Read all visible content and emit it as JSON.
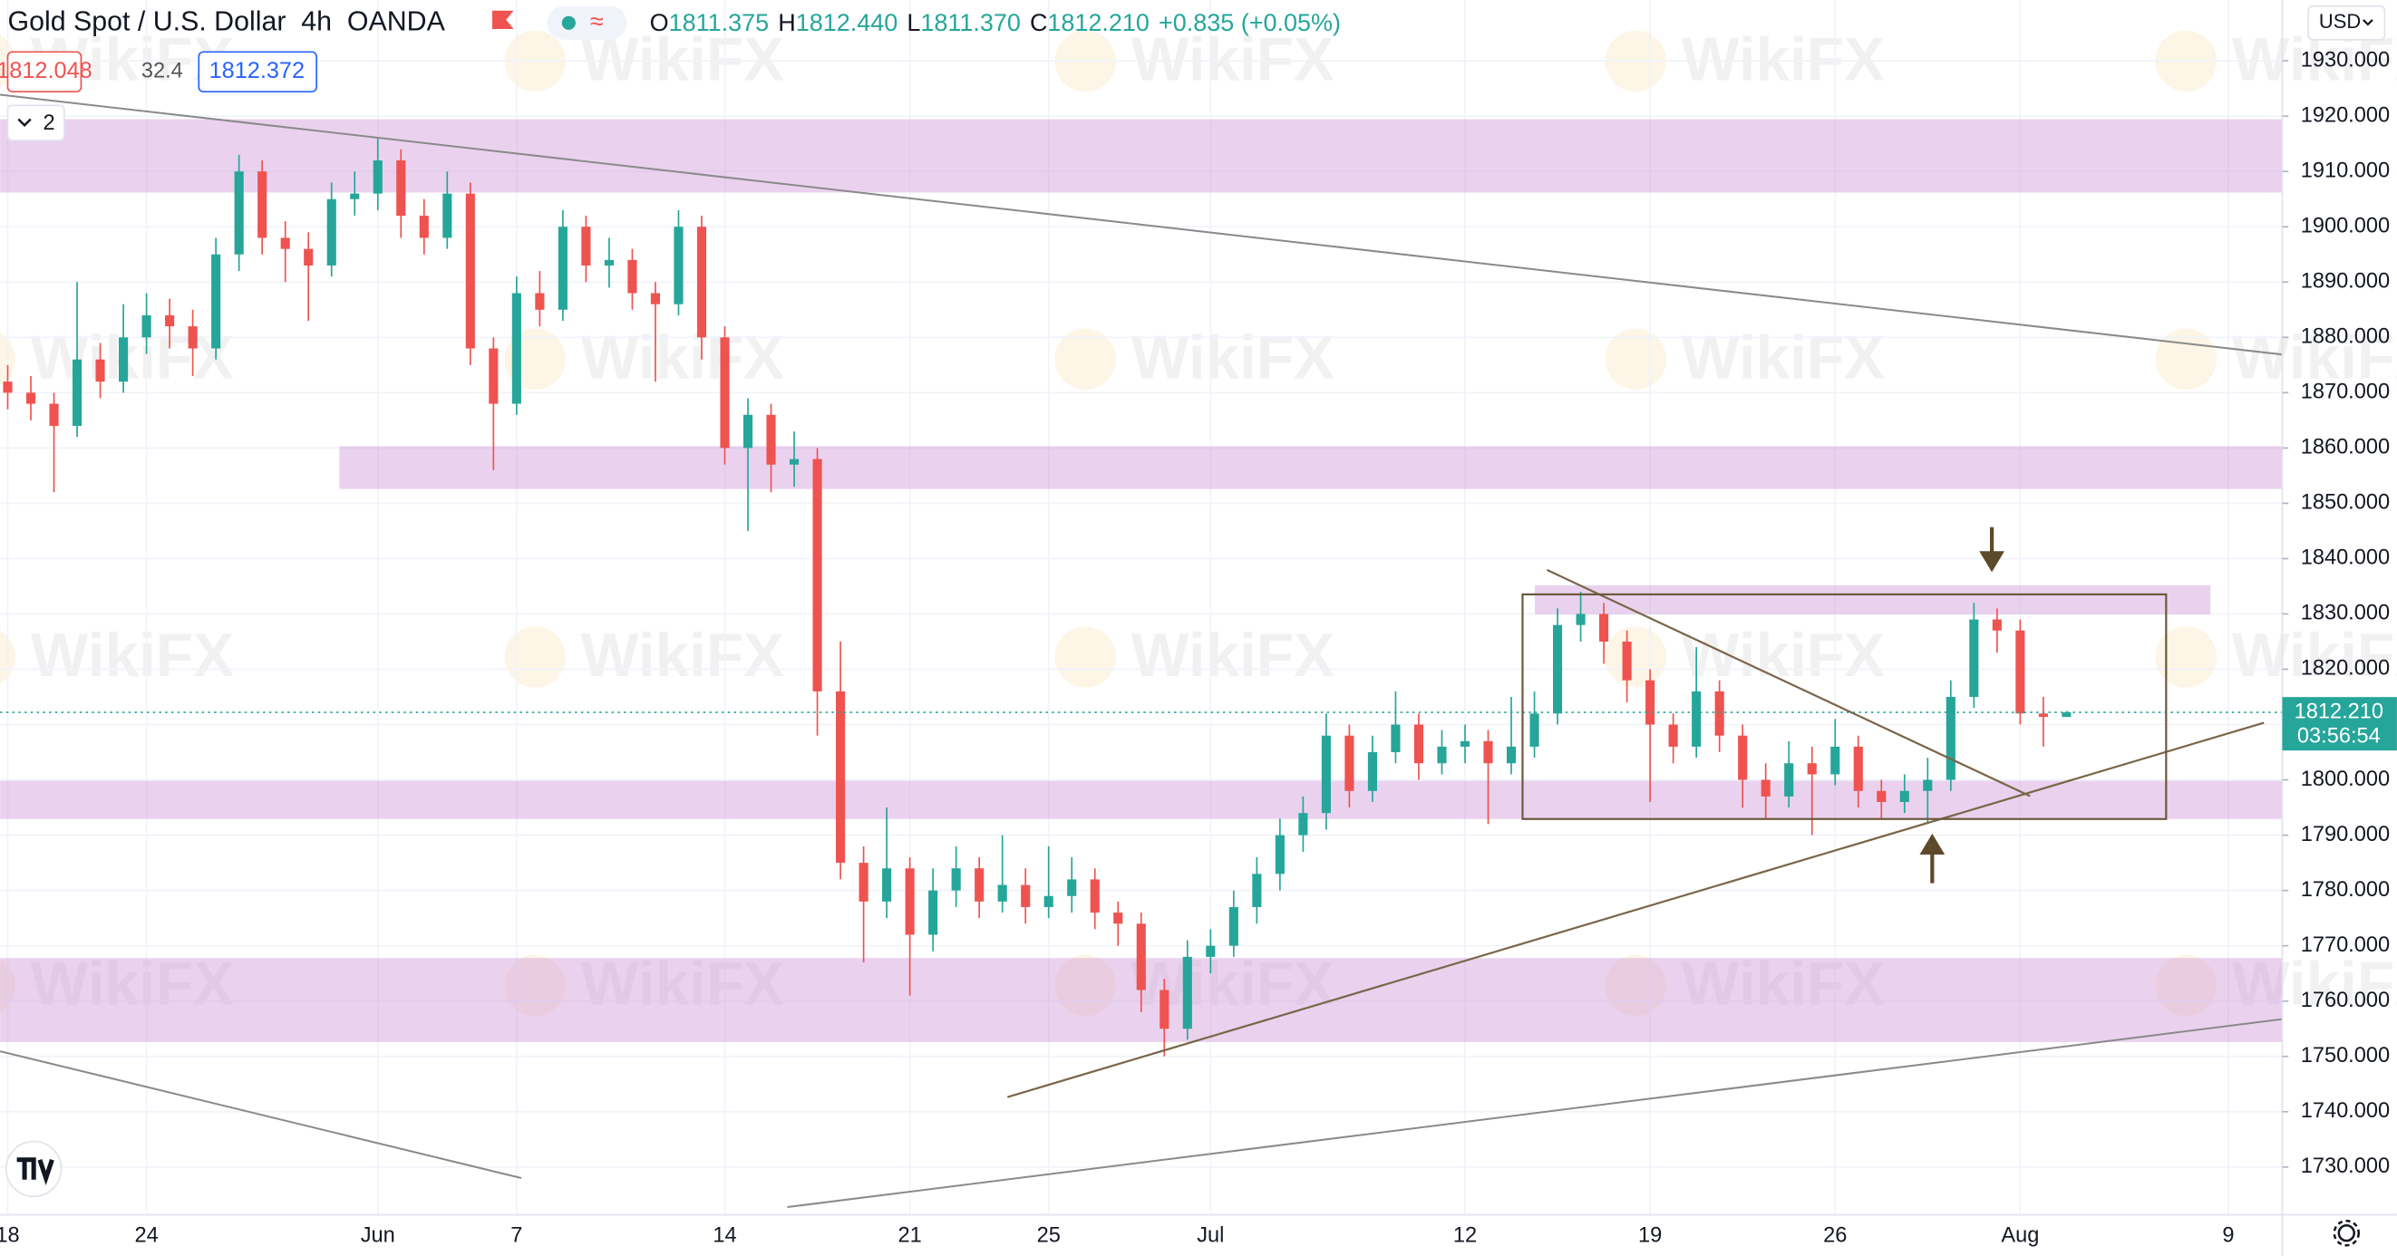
{
  "header": {
    "title": "Gold Spot / U.S. Dollar",
    "interval": "4h",
    "source": "OANDA",
    "ohlc": [
      {
        "label": "O",
        "value": "1811.375"
      },
      {
        "label": "H",
        "value": "1812.440"
      },
      {
        "label": "L",
        "value": "1811.370"
      },
      {
        "label": "C",
        "value": "1812.210"
      }
    ],
    "change": "+0.835 (+0.05%)",
    "sell_price": "1812.048",
    "spread": "32.4",
    "buy_price": "1812.372",
    "indicators_toggle": "2",
    "currency": "USD",
    "last_price_label": "1812.210",
    "countdown": "03:56:54"
  },
  "watermark": "WikiFX",
  "chart_data": {
    "type": "candlestick",
    "categories": [
      "18",
      null,
      null,
      null,
      null,
      null,
      "24",
      null,
      null,
      null,
      null,
      null,
      null,
      null,
      null,
      null,
      "Jun",
      null,
      null,
      null,
      null,
      null,
      "7",
      null,
      null,
      null,
      null,
      null,
      null,
      null,
      null,
      "14",
      null,
      null,
      null,
      null,
      null,
      null,
      null,
      "21",
      null,
      null,
      null,
      null,
      null,
      "25",
      null,
      null,
      null,
      null,
      null,
      null,
      "Jul",
      null,
      null,
      null,
      null,
      null,
      null,
      null,
      null,
      null,
      null,
      "12",
      null,
      null,
      null,
      null,
      null,
      null,
      null,
      "19",
      null,
      null,
      null,
      null,
      null,
      null,
      null,
      "26",
      null,
      null,
      null,
      null,
      null,
      null,
      null,
      "Aug",
      null,
      null,
      null,
      null,
      null,
      null,
      null,
      null,
      "9",
      null,
      null
    ],
    "open": [
      1872,
      1870,
      1868,
      1864,
      1876,
      1872,
      1880,
      1884,
      1882,
      1878,
      1895,
      1910,
      1898,
      1896,
      1893,
      1905,
      1906,
      1912,
      1902,
      1898,
      1906,
      1878,
      1868,
      1888,
      1885,
      1900,
      1893,
      1894,
      1888,
      1886,
      1900,
      1880,
      1860,
      1866,
      1857,
      1858,
      1816,
      1785,
      1778,
      1784,
      1772,
      1780,
      1784,
      1778,
      1781,
      1777,
      1779,
      1782,
      1776,
      1774,
      1762,
      1755,
      1768,
      1770,
      1777,
      1783,
      1790,
      1794,
      1808,
      1798,
      1805,
      1810,
      1803,
      1806,
      1807,
      1803,
      1806,
      1812,
      1828,
      1830,
      1825,
      1818,
      1810,
      1806,
      1816,
      1808,
      1800,
      1797,
      1803,
      1801,
      1806,
      1798,
      1796,
      1798,
      1800,
      1815,
      1829,
      1827,
      1812,
      1811.375,
      null,
      null,
      null,
      null,
      null,
      null,
      null,
      null,
      null
    ],
    "high": [
      1875,
      1873,
      1870,
      1890,
      1879,
      1886,
      1888,
      1887,
      1885,
      1898,
      1913,
      1912,
      1901,
      1899,
      1908,
      1910,
      1916,
      1914,
      1905,
      1910,
      1908,
      1880,
      1891,
      1892,
      1903,
      1902,
      1898,
      1896,
      1890,
      1903,
      1902,
      1882,
      1869,
      1868,
      1863,
      1860,
      1825,
      1788,
      1795,
      1786,
      1784,
      1788,
      1786,
      1790,
      1784,
      1788,
      1786,
      1784,
      1778,
      1776,
      1764,
      1771,
      1773,
      1780,
      1786,
      1793,
      1797,
      1812,
      1810,
      1808,
      1816,
      1812,
      1809,
      1810,
      1809,
      1815,
      1816,
      1831,
      1834,
      1832,
      1827,
      1820,
      1812,
      1824,
      1818,
      1810,
      1803,
      1807,
      1806,
      1811,
      1808,
      1800,
      1801,
      1804,
      1818,
      1832,
      1831,
      1829,
      1815,
      1812.44,
      null,
      null,
      null,
      null,
      null,
      null,
      null,
      null,
      null
    ],
    "low": [
      1867,
      1865,
      1852,
      1862,
      1869,
      1870,
      1877,
      1878,
      1873,
      1876,
      1892,
      1895,
      1890,
      1883,
      1891,
      1902,
      1903,
      1898,
      1895,
      1896,
      1875,
      1856,
      1866,
      1882,
      1883,
      1890,
      1889,
      1885,
      1872,
      1884,
      1876,
      1857,
      1845,
      1852,
      1853,
      1808,
      1782,
      1767,
      1775,
      1761,
      1769,
      1777,
      1775,
      1776,
      1774,
      1775,
      1776,
      1773,
      1770,
      1758,
      1750,
      1753,
      1765,
      1768,
      1774,
      1780,
      1787,
      1791,
      1795,
      1796,
      1803,
      1800,
      1801,
      1803,
      1792,
      1801,
      1804,
      1810,
      1825,
      1821,
      1814,
      1796,
      1803,
      1804,
      1805,
      1795,
      1793,
      1795,
      1790,
      1799,
      1795,
      1793,
      1794,
      1792,
      1798,
      1813,
      1823,
      1810,
      1806,
      1811.37,
      null,
      null,
      null,
      null,
      null,
      null,
      null,
      null,
      null
    ],
    "close": [
      1870,
      1868,
      1864,
      1876,
      1872,
      1880,
      1884,
      1882,
      1878,
      1895,
      1910,
      1898,
      1896,
      1893,
      1905,
      1906,
      1912,
      1902,
      1898,
      1906,
      1878,
      1868,
      1888,
      1885,
      1900,
      1893,
      1894,
      1888,
      1886,
      1900,
      1880,
      1860,
      1866,
      1857,
      1858,
      1816,
      1785,
      1778,
      1784,
      1772,
      1780,
      1784,
      1778,
      1781,
      1777,
      1779,
      1782,
      1776,
      1774,
      1762,
      1755,
      1768,
      1770,
      1777,
      1783,
      1790,
      1794,
      1808,
      1798,
      1805,
      1810,
      1803,
      1806,
      1807,
      1803,
      1806,
      1812,
      1828,
      1830,
      1825,
      1818,
      1810,
      1806,
      1816,
      1808,
      1800,
      1797,
      1803,
      1801,
      1806,
      1798,
      1796,
      1798,
      1800,
      1815,
      1829,
      1827,
      1812,
      1811.375,
      1812.21,
      null,
      null,
      null,
      null,
      null,
      null,
      null,
      null,
      null
    ],
    "up_color": "#26a69a",
    "down_color": "#ef5350",
    "ylim": [
      1722.2,
      1941
    ],
    "yticks": [
      {
        "value": 1730,
        "label": "1730.000"
      },
      {
        "value": 1740,
        "label": "1740.000"
      },
      {
        "value": 1750,
        "label": "1750.000"
      },
      {
        "value": 1760,
        "label": "1760.000"
      },
      {
        "value": 1770,
        "label": "1770.000"
      },
      {
        "value": 1780,
        "label": "1780.000"
      },
      {
        "value": 1790,
        "label": "1790.000"
      },
      {
        "value": 1800,
        "label": "1800.000"
      },
      {
        "value": 1810,
        "label": "1810.000"
      },
      {
        "value": 1820,
        "label": "1820.000"
      },
      {
        "value": 1830,
        "label": "1830.000"
      },
      {
        "value": 1840,
        "label": "1840.000"
      },
      {
        "value": 1850,
        "label": "1850.000"
      },
      {
        "value": 1860,
        "label": "1860.000"
      },
      {
        "value": 1870,
        "label": "1870.000"
      },
      {
        "value": 1880,
        "label": "1880.000"
      },
      {
        "value": 1890,
        "label": "1890.000"
      },
      {
        "value": 1900,
        "label": "1900.000"
      },
      {
        "value": 1910,
        "label": "1910.000"
      },
      {
        "value": 1920,
        "label": "1920.000"
      },
      {
        "value": 1930,
        "label": "1930.000"
      }
    ],
    "grid": true
  }
}
